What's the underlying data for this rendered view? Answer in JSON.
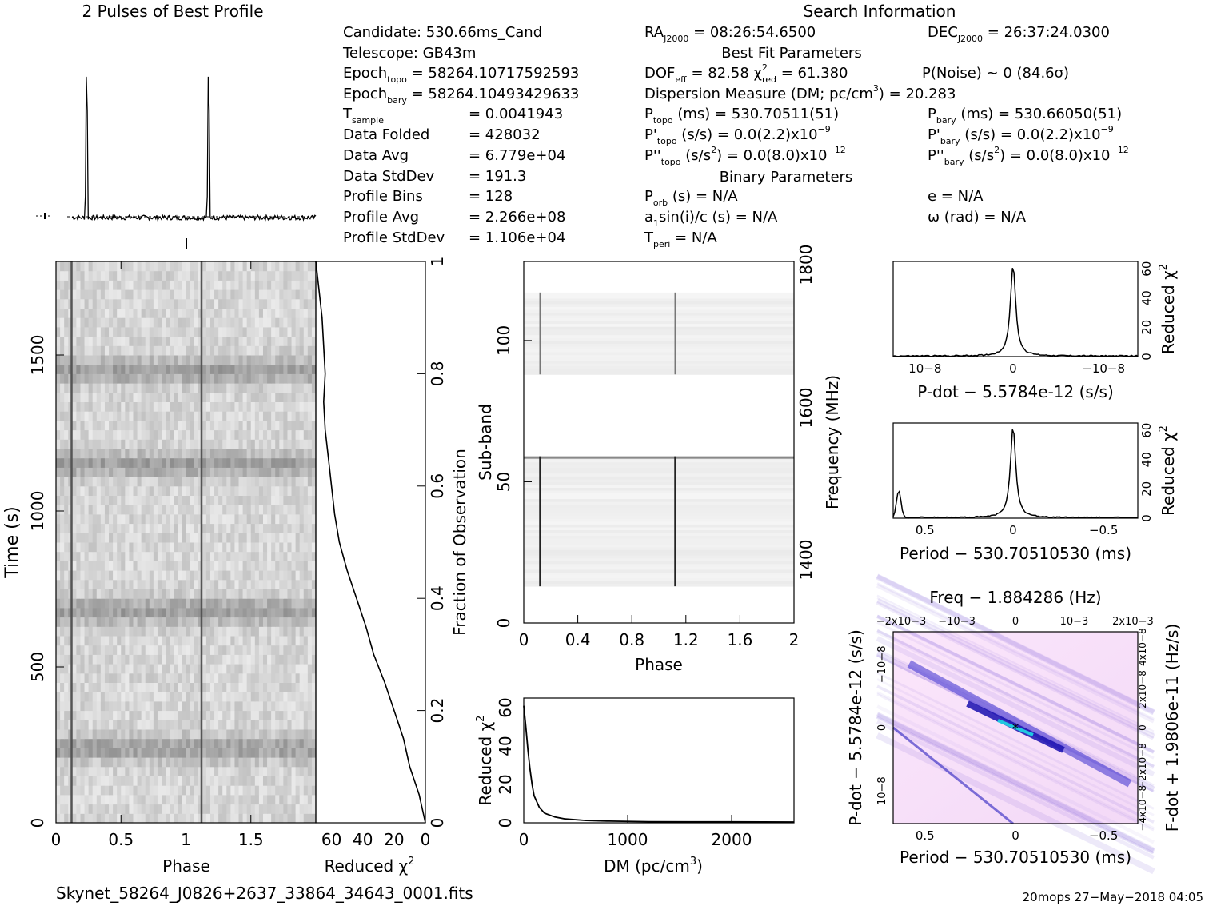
{
  "titles": {
    "profile_title": "2 Pulses of Best Profile",
    "search_info": "Search Information",
    "best_fit": "Best Fit Parameters",
    "binary": "Binary Parameters"
  },
  "info_left": [
    {
      "label": "Candidate:  530.66ms_Cand"
    },
    {
      "label": "Telescope:  GB43m"
    },
    {
      "label": "Epoch",
      "sub": "topo",
      "rest": " = 58264.10717592593"
    },
    {
      "label": "Epoch",
      "sub": "bary",
      "rest": " = 58264.10493429633"
    },
    {
      "label": "T",
      "sub": "sample",
      "rest": "",
      "eq": "=  0.0041943"
    },
    {
      "label": "Data Folded",
      "eq": "=  428032"
    },
    {
      "label": "Data Avg",
      "eq": "=  6.779e+04"
    },
    {
      "label": "Data StdDev",
      "eq": "=  191.3"
    },
    {
      "label": "Profile Bins",
      "eq": "=  128"
    },
    {
      "label": "Profile Avg",
      "eq": "=  2.266e+08"
    },
    {
      "label": "Profile StdDev",
      "eq": "=  1.106e+04"
    }
  ],
  "info_mid": {
    "ra": "RA",
    "ra_sub": "J2000",
    "ra_val": " = 08:26:54.6500",
    "dof": "DOF",
    "dof_sub": "eff",
    "dof_val": " = 82.58  χ",
    "chi_sup": "2",
    "chi_sub": "red",
    "chi_val": " = 61.380",
    "dm_line": "Dispersion Measure (DM; pc/cm",
    "dm_sup": "3",
    "dm_end": ") = 20.283",
    "ptopo": "P",
    "ptopo_sub": "topo",
    "ptopo_val": " (ms) =  530.70511(51)",
    "pdtopo": "P'",
    "pdtopo_sub": "topo",
    "pdtopo_val": " (s/s) = 0.0(2.2)x10",
    "pdtopo_exp": "−9",
    "pddtopo": "P''",
    "pddtopo_sub": "topo",
    "pddtopo_val": " (s/s",
    "pddtopo_sup": "2",
    "pddtopo_end": ") = 0.0(8.0)x10",
    "pddtopo_exp": "−12",
    "porb": "P",
    "porb_sub": "orb",
    "porb_val": " (s) = N/A",
    "a1": "a",
    "a1_sub": "1",
    "a1_val": "sin(i)/c (s) = N/A",
    "tperi": "T",
    "tperi_sub": "peri",
    "tperi_val": " = N/A"
  },
  "info_right": {
    "dec": "DEC",
    "dec_sub": "J2000",
    "dec_val": " = 26:37:24.0300",
    "pnoise": "P(Noise) ~ 0    (84.6σ)",
    "pbary": "P",
    "pbary_sub": "bary",
    "pbary_val": " (ms) =  530.66050(51)",
    "pdbary": "P'",
    "pdbary_sub": "bary",
    "pdbary_val": " (s/s) = 0.0(2.2)x10",
    "pdbary_exp": "−9",
    "pddbary": "P''",
    "pddbary_sub": "bary",
    "pddbary_val": " (s/s",
    "pddbary_sup": "2",
    "pddbary_end": ") = 0.0(8.0)x10",
    "pddbary_exp": "−12",
    "e_val": "e = N/A",
    "omega_val": "ω (rad) = N/A"
  },
  "footer": {
    "filename": "Skynet_58264_J0826+2637_33864_34643_0001.fits",
    "stamp": "20mops 27−May−2018 04:05"
  },
  "chart_data": [
    {
      "type": "line",
      "name": "profile",
      "x": [
        0.0,
        0.1,
        0.115,
        0.13,
        0.5,
        1.0,
        1.1,
        1.115,
        1.13,
        1.5,
        2.0
      ],
      "y": [
        0.05,
        0.06,
        1.0,
        0.06,
        0.05,
        0.05,
        0.06,
        1.0,
        0.06,
        0.05,
        0.05
      ],
      "xlim": [
        0,
        2
      ]
    },
    {
      "type": "heatmap",
      "name": "time-phase",
      "xlabel": "Phase",
      "ylabel": "Time (s)",
      "xlim": [
        0,
        2
      ],
      "ylim": [
        0,
        1800
      ],
      "x_ticks": [
        "0",
        "0.5",
        "1",
        "1.5"
      ],
      "y_ticks": [
        "0",
        "500",
        "1000",
        "1500"
      ],
      "pulse_phases": [
        0.12,
        1.12
      ],
      "dark_bands_s": [
        240,
        680,
        1150,
        1450
      ]
    },
    {
      "type": "line",
      "name": "chi2-vs-fraction",
      "xlabel": "Reduced χ2",
      "ylabel": "Fraction of Observation",
      "x_ticks": [
        "60",
        "40",
        "20",
        "0"
      ],
      "y_ticks": [
        "0",
        "0.2",
        "0.4",
        "0.6",
        "0.8",
        "1"
      ],
      "xlim": [
        70,
        0
      ],
      "ylim": [
        0,
        1
      ],
      "x": [
        0,
        4,
        10,
        14,
        20,
        26,
        33,
        38,
        44,
        50,
        55,
        58,
        60,
        62,
        64,
        65,
        64,
        66,
        70
      ],
      "y": [
        0.0,
        0.05,
        0.1,
        0.15,
        0.2,
        0.25,
        0.3,
        0.35,
        0.4,
        0.45,
        0.5,
        0.55,
        0.6,
        0.65,
        0.7,
        0.75,
        0.8,
        0.9,
        1.0
      ]
    },
    {
      "type": "heatmap",
      "name": "subband-phase",
      "xlabel": "Phase",
      "ylabel": "Sub-band",
      "y2label": "Frequency (MHz)",
      "xlim": [
        0,
        2
      ],
      "ylim": [
        0,
        128
      ],
      "x_ticks": [
        "0",
        "0.4",
        "0.8",
        "1.2",
        "1.6",
        "2"
      ],
      "y_ticks": [
        "0",
        "50",
        "100"
      ],
      "y2_ticks": [
        "1400",
        "1600",
        "1800"
      ],
      "pulse_phases": [
        0.12,
        1.12
      ],
      "masked_subbands": [
        [
          59,
          88
        ],
        [
          117,
          128
        ]
      ],
      "empty_below": 13
    },
    {
      "type": "line",
      "name": "dm-chi2",
      "xlabel": "DM (pc/cm3)",
      "ylabel": "Reduced χ2",
      "xlim": [
        0,
        2600
      ],
      "ylim": [
        0,
        65
      ],
      "x_ticks": [
        "0",
        "1000",
        "2000"
      ],
      "y_ticks": [
        "0",
        "20",
        "40",
        "60"
      ],
      "x": [
        0,
        20,
        40,
        60,
        80,
        100,
        150,
        200,
        300,
        400,
        600,
        800,
        1200,
        1600,
        2000,
        2600
      ],
      "y": [
        61,
        50,
        38,
        28,
        20,
        14,
        8,
        5,
        3,
        2,
        1.2,
        0.9,
        0.6,
        0.5,
        0.5,
        0.4
      ]
    },
    {
      "type": "line",
      "name": "pdot-chi2",
      "xlabel": "P-dot − 5.5784e-12 (s/s)",
      "ylabel": "Reduced χ2",
      "x_ticks": [
        "10−8",
        "0",
        "−10−8"
      ],
      "y_ticks": [
        "0",
        "20",
        "40",
        "60"
      ],
      "ylim": [
        0,
        65
      ]
    },
    {
      "type": "line",
      "name": "period-chi2",
      "xlabel": "Period − 530.70510530 (ms)",
      "ylabel": "Reduced χ2",
      "x_ticks": [
        "0.5",
        "0",
        "−0.5"
      ],
      "y_ticks": [
        "0",
        "20",
        "40",
        "60"
      ],
      "ylim": [
        0,
        65
      ]
    },
    {
      "type": "heatmap",
      "name": "p-pdot",
      "title": "Freq − 1.884286 (Hz)",
      "xlabel": "Period − 530.70510530 (ms)",
      "ylabel": "P-dot − 5.5784e-12 (s/s)",
      "y2label": "F-dot + 1.9806e-11 (Hz/s)",
      "x_ticks": [
        "0.5",
        "0",
        "−0.5"
      ],
      "top_ticks": [
        "−2x10−3",
        "−10−3",
        "0",
        "10−3",
        "2x10−3"
      ],
      "y_ticks": [
        "10−8",
        "0",
        "−10−8"
      ],
      "y2_ticks": [
        "−4x10−8",
        "−2x10−8",
        "0",
        "2x10−8",
        "4x10−8"
      ]
    }
  ]
}
